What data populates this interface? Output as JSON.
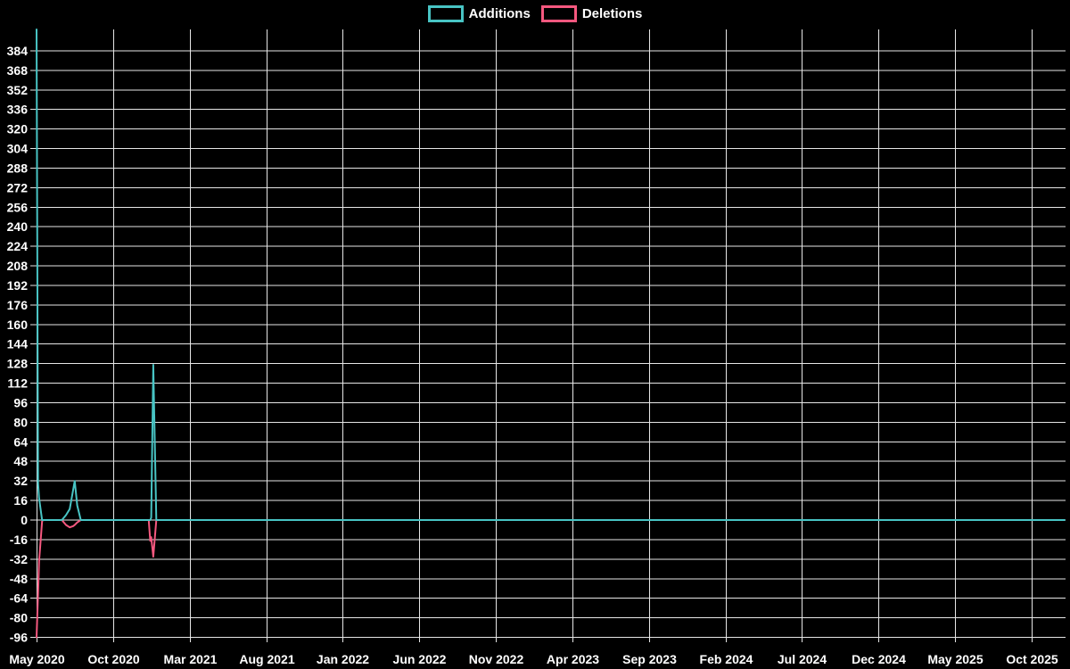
{
  "chart_data": {
    "type": "line",
    "title": "",
    "xlabel": "",
    "ylabel": "",
    "legend_position": "top",
    "grid": true,
    "background_color": "#000000",
    "grid_color": "#e6e6e6",
    "text_color": "#ffffff",
    "x_tick_labels": [
      "May 2020",
      "Oct 2020",
      "Mar 2021",
      "Aug 2021",
      "Jan 2022",
      "Jun 2022",
      "Nov 2022",
      "Apr 2023",
      "Sep 2023",
      "Feb 2024",
      "Jul 2024",
      "Dec 2024",
      "May 2025",
      "Oct 2025"
    ],
    "y_ticks": [
      384,
      368,
      352,
      336,
      320,
      304,
      288,
      272,
      256,
      240,
      224,
      208,
      192,
      176,
      160,
      144,
      128,
      112,
      96,
      80,
      64,
      48,
      32,
      16,
      0,
      -16,
      -32,
      -48,
      -64,
      -80,
      -96
    ],
    "ylim": [
      -96,
      402
    ],
    "xlim": [
      "2020-05-01",
      "2025-12-07"
    ],
    "x": [
      "2020-05-01",
      "2020-05-04",
      "2020-05-06",
      "2020-05-12",
      "2020-05-14",
      "2020-06-21",
      "2020-06-29",
      "2020-07-06",
      "2020-07-13",
      "2020-07-16",
      "2020-07-21",
      "2020-07-28",
      "2020-12-11",
      "2020-12-14",
      "2020-12-16",
      "2020-12-20",
      "2020-12-26",
      "2025-12-07"
    ],
    "series": [
      {
        "name": "Additions",
        "color": "#48c4c4",
        "values": [
          402,
          30,
          18,
          0,
          0,
          0,
          4,
          9,
          25,
          32,
          12,
          0,
          0,
          0,
          2,
          127,
          0,
          0
        ]
      },
      {
        "name": "Deletions",
        "color": "#f5587f",
        "values": [
          -96,
          -60,
          -34,
          -1,
          0,
          0,
          -4,
          -6,
          -5,
          -4,
          -2,
          0,
          0,
          -17,
          -14,
          -30,
          0,
          0
        ]
      }
    ]
  }
}
